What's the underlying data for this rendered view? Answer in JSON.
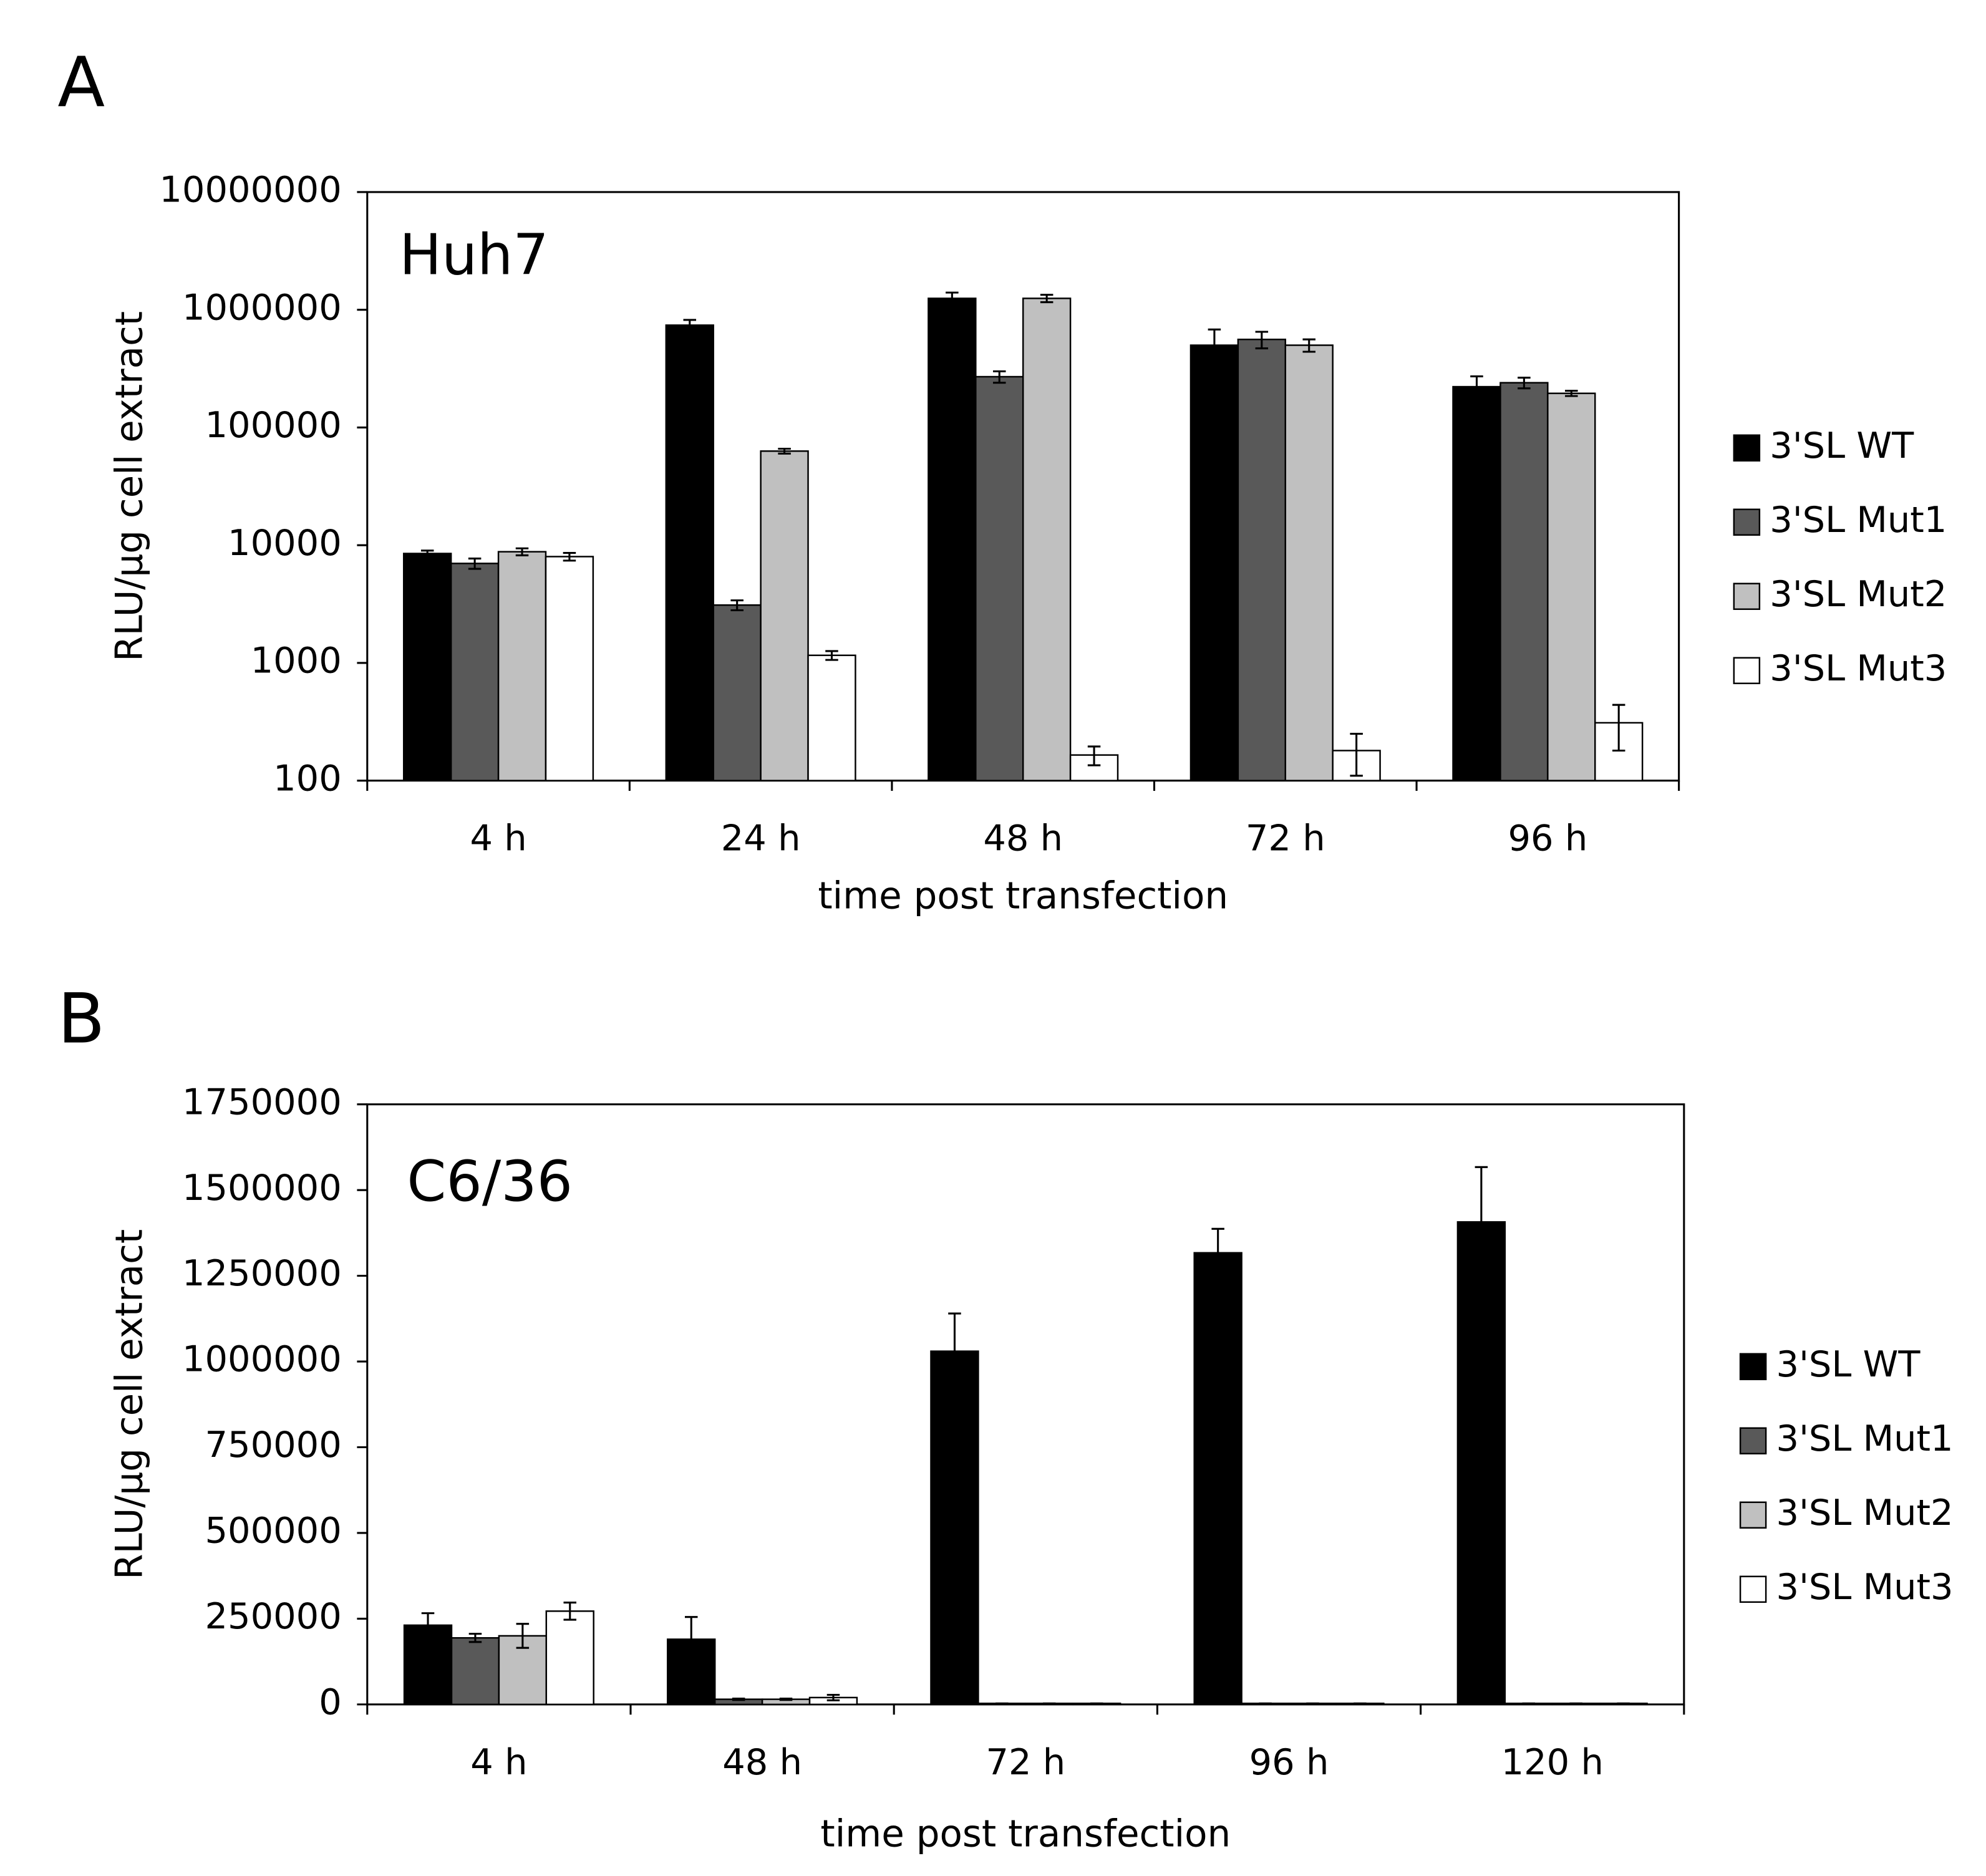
{
  "chart_data": [
    {
      "type": "bar",
      "panel_label": "A",
      "annotation": "Huh7",
      "ylabel": "RLU/µg cell extract",
      "xlabel": "time post transfection",
      "log_scale": true,
      "legend": "right",
      "categories": [
        "4 h",
        "24 h",
        "48 h",
        "72 h",
        "96 h"
      ],
      "ylim": [
        100,
        10000000
      ],
      "yticks": [
        100,
        1000,
        10000,
        100000,
        1000000,
        10000000
      ],
      "series": [
        {
          "name": "3'SL WT",
          "color": "#000000",
          "values": [
            8500,
            740000,
            1250000,
            500000,
            222000
          ],
          "errors": [
            500,
            80000,
            150000,
            180000,
            50000
          ]
        },
        {
          "name": "3'SL Mut1",
          "color": "#595959",
          "values": [
            7000,
            3100,
            270000,
            560000,
            240000
          ],
          "errors": [
            700,
            300,
            30000,
            90000,
            25000
          ]
        },
        {
          "name": "3'SL Mut2",
          "color": "#c0c0c0",
          "values": [
            8800,
            63000,
            1250000,
            500000,
            195000
          ],
          "errors": [
            600,
            3000,
            90000,
            60000,
            10000
          ]
        },
        {
          "name": "3'SL Mut3",
          "color": "#ffffff",
          "values": [
            8000,
            1160,
            165,
            180,
            310
          ],
          "errors": [
            600,
            100,
            30,
            70,
            130
          ]
        }
      ]
    },
    {
      "type": "bar",
      "panel_label": "B",
      "annotation": "C6/36",
      "ylabel": "RLU/µg cell extract",
      "xlabel": "time post transfection",
      "log_scale": false,
      "legend": "right",
      "categories": [
        "4 h",
        "48 h",
        "72 h",
        "96 h",
        "120 h"
      ],
      "ylim": [
        0,
        1750000
      ],
      "yticks": [
        0,
        250000,
        500000,
        750000,
        1000000,
        1250000,
        1500000,
        1750000
      ],
      "series": [
        {
          "name": "3'SL WT",
          "color": "#000000",
          "values": [
            231000,
            190000,
            1030000,
            1317000,
            1407000
          ],
          "errors": [
            35000,
            65000,
            110000,
            70000,
            160000
          ]
        },
        {
          "name": "3'SL Mut1",
          "color": "#595959",
          "values": [
            194000,
            15000,
            3000,
            3000,
            3000
          ],
          "errors": [
            12000,
            2000,
            0,
            0,
            0
          ]
        },
        {
          "name": "3'SL Mut2",
          "color": "#c0c0c0",
          "values": [
            200000,
            15000,
            3000,
            3000,
            3000
          ],
          "errors": [
            35000,
            2000,
            0,
            0,
            0
          ]
        },
        {
          "name": "3'SL Mut3",
          "color": "#ffffff",
          "values": [
            272000,
            20000,
            3000,
            3000,
            3000
          ],
          "errors": [
            25000,
            8000,
            0,
            0,
            0
          ]
        }
      ]
    }
  ]
}
